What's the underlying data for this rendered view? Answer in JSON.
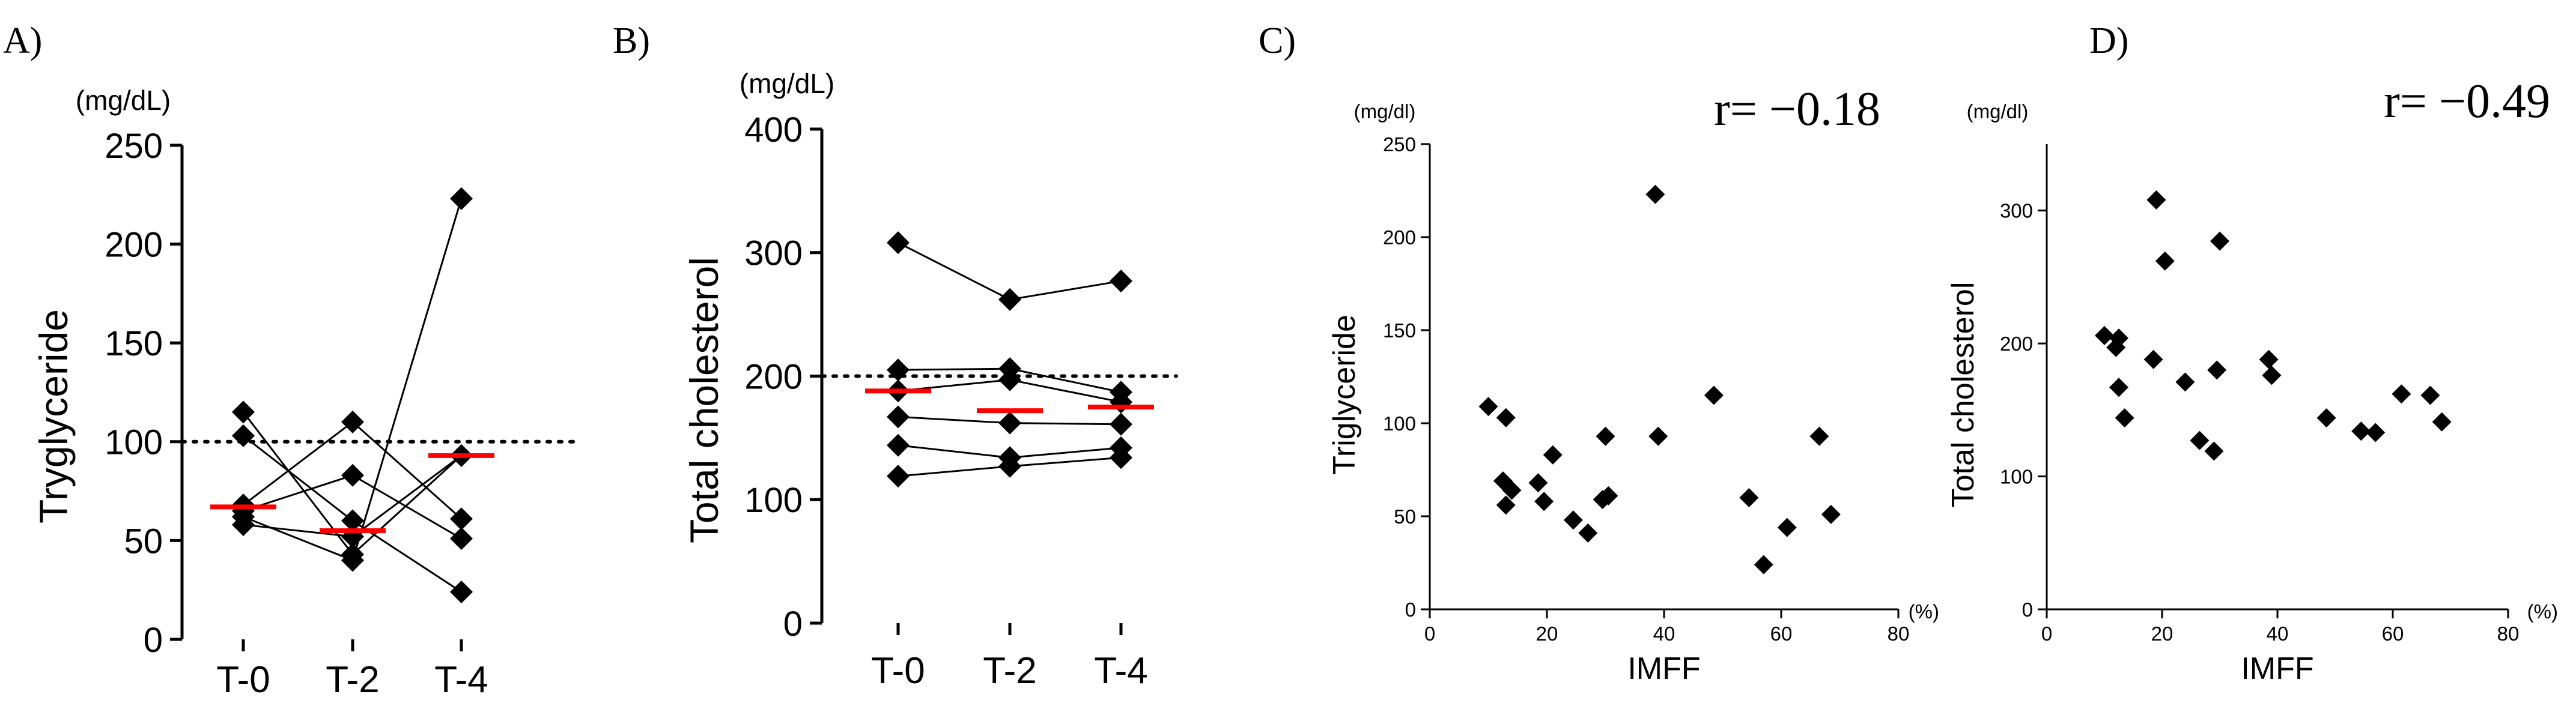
{
  "chart_data": [
    {
      "panel": "A)",
      "type": "line",
      "unit": "(mg/dL)",
      "ylabel": "Tryglyceride",
      "ylim": [
        0,
        250
      ],
      "yticks": [
        "0",
        "50",
        "100",
        "150",
        "200",
        "250"
      ],
      "categories": [
        "T-0",
        "T-2",
        "T-4"
      ],
      "reference_line": 100,
      "series": [
        {
          "values": [
            115,
            43,
            93
          ]
        },
        {
          "values": [
            103,
            60,
            24
          ]
        },
        {
          "values": [
            68,
            110,
            61
          ]
        },
        {
          "values": [
            65,
            83,
            51
          ]
        },
        {
          "values": [
            62,
            40,
            223
          ]
        },
        {
          "values": [
            58,
            52,
            93
          ]
        }
      ],
      "means": [
        67,
        55,
        93
      ]
    },
    {
      "panel": "B)",
      "type": "line",
      "unit": "(mg/dL)",
      "ylabel": "Total cholesterol",
      "ylim": [
        0,
        400
      ],
      "yticks": [
        "0",
        "100",
        "200",
        "300",
        "400"
      ],
      "categories": [
        "T-0",
        "T-2",
        "T-4"
      ],
      "reference_line": 200,
      "series": [
        {
          "values": [
            308,
            262,
            277
          ]
        },
        {
          "values": [
            205,
            206,
            187
          ]
        },
        {
          "values": [
            188,
            197,
            179
          ]
        },
        {
          "values": [
            167,
            162,
            161
          ]
        },
        {
          "values": [
            144,
            134,
            142
          ]
        },
        {
          "values": [
            119,
            127,
            134
          ]
        }
      ],
      "means": [
        188,
        172,
        175
      ]
    },
    {
      "panel": "C)",
      "type": "scatter",
      "unit": "(mg/dl)",
      "ylabel": "Triglyceride",
      "xlabel": "IMFF",
      "xunit": "(%)",
      "xlim": [
        0,
        80
      ],
      "ylim": [
        0,
        250
      ],
      "xticks": [
        "0",
        "20",
        "40",
        "60",
        "80"
      ],
      "yticks": [
        "0",
        "50",
        "100",
        "150",
        "200",
        "250"
      ],
      "annotation": "r= −0.18",
      "points": [
        {
          "x": 10,
          "y": 109
        },
        {
          "x": 13,
          "y": 103
        },
        {
          "x": 12.5,
          "y": 69
        },
        {
          "x": 13,
          "y": 56
        },
        {
          "x": 14,
          "y": 64
        },
        {
          "x": 18.5,
          "y": 68
        },
        {
          "x": 19.5,
          "y": 58
        },
        {
          "x": 21,
          "y": 83
        },
        {
          "x": 24.5,
          "y": 48
        },
        {
          "x": 27,
          "y": 41
        },
        {
          "x": 29.5,
          "y": 59
        },
        {
          "x": 30,
          "y": 93
        },
        {
          "x": 30.5,
          "y": 61
        },
        {
          "x": 38.5,
          "y": 223
        },
        {
          "x": 39,
          "y": 93
        },
        {
          "x": 48.5,
          "y": 115
        },
        {
          "x": 54.5,
          "y": 60
        },
        {
          "x": 57,
          "y": 24
        },
        {
          "x": 61,
          "y": 44
        },
        {
          "x": 66.5,
          "y": 93
        },
        {
          "x": 68.5,
          "y": 51
        }
      ]
    },
    {
      "panel": "D)",
      "type": "scatter",
      "unit": "(mg/dl)",
      "ylabel": "Total cholesterol",
      "xlabel": "IMFF",
      "xunit": "(%)",
      "xlim": [
        0,
        80
      ],
      "ylim": [
        0,
        350
      ],
      "xticks": [
        "0",
        "20",
        "40",
        "60",
        "80"
      ],
      "yticks": [
        "0",
        "100",
        "200",
        "300"
      ],
      "annotation": "r= −0.49",
      "points": [
        {
          "x": 10,
          "y": 206
        },
        {
          "x": 12,
          "y": 197
        },
        {
          "x": 12.5,
          "y": 204
        },
        {
          "x": 12.5,
          "y": 167
        },
        {
          "x": 13.5,
          "y": 144
        },
        {
          "x": 18.5,
          "y": 188
        },
        {
          "x": 19,
          "y": 308
        },
        {
          "x": 20.5,
          "y": 262
        },
        {
          "x": 24,
          "y": 171
        },
        {
          "x": 26.5,
          "y": 127
        },
        {
          "x": 29,
          "y": 119
        },
        {
          "x": 29.5,
          "y": 180
        },
        {
          "x": 30,
          "y": 277
        },
        {
          "x": 38.5,
          "y": 188
        },
        {
          "x": 39,
          "y": 176
        },
        {
          "x": 48.5,
          "y": 144
        },
        {
          "x": 54.5,
          "y": 134
        },
        {
          "x": 57,
          "y": 133
        },
        {
          "x": 61.5,
          "y": 162
        },
        {
          "x": 66.5,
          "y": 161
        },
        {
          "x": 68.5,
          "y": 141
        }
      ]
    }
  ]
}
